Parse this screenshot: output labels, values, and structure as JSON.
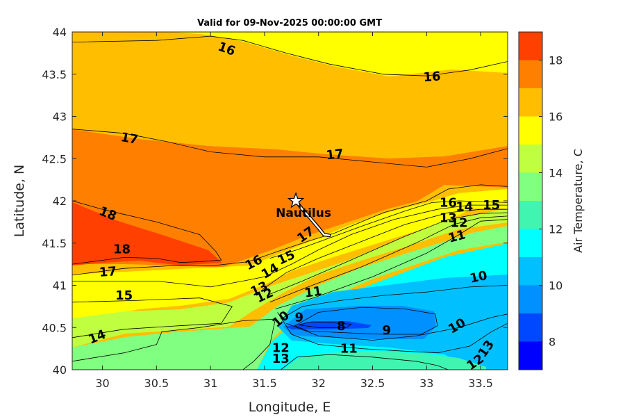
{
  "chart_data": {
    "type": "heatmap",
    "subtype": "filled-contour",
    "title": "Valid for 09-Nov-2025 00:00:00 GMT",
    "xlabel": "Longitude, E",
    "ylabel": "Latitude, N",
    "xlim": [
      29.72,
      33.75
    ],
    "ylim": [
      40,
      44
    ],
    "xticks": [
      30,
      30.5,
      31,
      31.5,
      32,
      32.5,
      33,
      33.5
    ],
    "xtick_labels": [
      "30",
      "30.5",
      "31",
      "31.5",
      "32",
      "32.5",
      "33",
      "33.5"
    ],
    "yticks": [
      40,
      40.5,
      41,
      41.5,
      42,
      42.5,
      43,
      43.5,
      44
    ],
    "ytick_labels": [
      "40",
      "40.5",
      "41",
      "41.5",
      "42",
      "42.5",
      "43",
      "43.5",
      "44"
    ],
    "grid": false,
    "colorbar": {
      "label": "Air Temperature, C",
      "range": [
        7,
        19
      ],
      "levels": [
        7,
        8,
        9,
        10,
        11,
        12,
        13,
        14,
        15,
        16,
        17,
        18,
        19
      ],
      "colors": [
        "#0000ff",
        "#0048ff",
        "#0090ff",
        "#00c0ff",
        "#00ffff",
        "#40f5b0",
        "#80ff80",
        "#bfff40",
        "#ffff00",
        "#ffbf00",
        "#ff8000",
        "#ff4000",
        "#ff0000"
      ],
      "tick_labels": [
        "8",
        "10",
        "12",
        "14",
        "16",
        "18"
      ],
      "ticks": [
        8,
        10,
        12,
        14,
        16,
        18
      ]
    },
    "contours": [
      {
        "level": 16,
        "points": [
          [
            29.72,
            43.88
          ],
          [
            30.5,
            43.9
          ],
          [
            31.0,
            43.95
          ],
          [
            31.3,
            43.9
          ],
          [
            31.7,
            43.75
          ],
          [
            32.1,
            43.62
          ],
          [
            32.6,
            43.5
          ],
          [
            33.0,
            43.48
          ],
          [
            33.4,
            43.55
          ],
          [
            33.75,
            43.65
          ]
        ]
      },
      {
        "level": 17,
        "points": [
          [
            29.72,
            42.85
          ],
          [
            30.2,
            42.8
          ],
          [
            30.6,
            42.7
          ],
          [
            31.0,
            42.58
          ],
          [
            31.5,
            42.52
          ],
          [
            32.0,
            42.52
          ],
          [
            32.5,
            42.46
          ],
          [
            33.0,
            42.4
          ],
          [
            33.4,
            42.5
          ],
          [
            33.75,
            42.62
          ]
        ]
      },
      {
        "level": 18,
        "points": [
          [
            29.72,
            42.0
          ],
          [
            30.0,
            41.9
          ],
          [
            30.5,
            41.75
          ],
          [
            30.9,
            41.6
          ],
          [
            31.05,
            41.4
          ],
          [
            31.1,
            41.3
          ],
          [
            30.9,
            41.28
          ],
          [
            30.72,
            41.27
          ],
          [
            30.5,
            41.32
          ],
          [
            30.2,
            41.33
          ],
          [
            29.72,
            41.25
          ]
        ]
      },
      {
        "level": 17,
        "points": [
          [
            29.72,
            41.12
          ],
          [
            30.2,
            41.2
          ],
          [
            30.6,
            41.23
          ],
          [
            31.0,
            41.23
          ],
          [
            31.35,
            41.28
          ],
          [
            31.62,
            41.4
          ],
          [
            31.9,
            41.52
          ],
          [
            32.15,
            41.62
          ],
          [
            32.6,
            41.86
          ],
          [
            33.0,
            42.0
          ],
          [
            33.2,
            42.14
          ],
          [
            33.5,
            42.19
          ],
          [
            33.75,
            42.17
          ]
        ]
      },
      {
        "level": 16,
        "points": [
          [
            31.55,
            41.32
          ],
          [
            31.8,
            41.42
          ],
          [
            32.1,
            41.56
          ],
          [
            32.4,
            41.7
          ],
          [
            32.8,
            41.88
          ],
          [
            33.05,
            41.98
          ],
          [
            33.3,
            42.0
          ],
          [
            33.75,
            41.98
          ]
        ]
      },
      {
        "level": 15,
        "points": [
          [
            29.72,
            41.05
          ],
          [
            30.5,
            41.05
          ],
          [
            31.0,
            40.98
          ],
          [
            31.3,
            41.05
          ],
          [
            31.5,
            41.1
          ],
          [
            31.75,
            41.25
          ],
          [
            32.0,
            41.42
          ],
          [
            32.3,
            41.6
          ],
          [
            32.7,
            41.78
          ],
          [
            33.1,
            41.9
          ],
          [
            33.4,
            41.95
          ],
          [
            33.75,
            41.95
          ]
        ]
      },
      {
        "level": 14,
        "points": [
          [
            31.48,
            40.95
          ],
          [
            31.7,
            41.15
          ],
          [
            32.0,
            41.32
          ],
          [
            32.4,
            41.52
          ],
          [
            32.8,
            41.72
          ],
          [
            33.2,
            41.86
          ],
          [
            33.5,
            41.9
          ],
          [
            33.75,
            41.9
          ]
        ]
      },
      {
        "level": 13,
        "points": [
          [
            31.52,
            40.88
          ],
          [
            31.85,
            41.05
          ],
          [
            32.3,
            41.3
          ],
          [
            32.8,
            41.58
          ],
          [
            33.2,
            41.78
          ],
          [
            33.5,
            41.85
          ],
          [
            33.75,
            41.86
          ]
        ]
      },
      {
        "level": 12,
        "points": [
          [
            31.55,
            40.8
          ],
          [
            31.9,
            40.98
          ],
          [
            32.4,
            41.22
          ],
          [
            32.9,
            41.5
          ],
          [
            33.25,
            41.72
          ],
          [
            33.5,
            41.8
          ],
          [
            33.75,
            41.82
          ]
        ]
      },
      {
        "level": 11,
        "points": [
          [
            31.6,
            40.72
          ],
          [
            31.95,
            40.85
          ],
          [
            32.5,
            41.1
          ],
          [
            33.0,
            41.38
          ],
          [
            33.3,
            41.6
          ],
          [
            33.5,
            41.76
          ],
          [
            33.75,
            41.78
          ]
        ]
      },
      {
        "level": 14,
        "points": [
          [
            29.72,
            40.8
          ],
          [
            30.3,
            40.82
          ],
          [
            30.9,
            40.85
          ],
          [
            31.2,
            40.75
          ],
          [
            31.1,
            40.55
          ],
          [
            30.7,
            40.52
          ],
          [
            30.2,
            40.48
          ],
          [
            29.72,
            40.38
          ]
        ]
      },
      {
        "level": 13,
        "points": [
          [
            29.72,
            40.1
          ],
          [
            30.2,
            40.2
          ],
          [
            30.5,
            40.3
          ],
          [
            30.55,
            40.45
          ],
          [
            30.9,
            40.5
          ],
          [
            31.3,
            40.58
          ],
          [
            31.6,
            40.6
          ],
          [
            31.55,
            40.3
          ],
          [
            31.4,
            40.1
          ],
          [
            31.3,
            40.0
          ]
        ]
      },
      {
        "level": 12,
        "points": [
          [
            31.65,
            40.0
          ],
          [
            31.8,
            40.15
          ],
          [
            32.1,
            40.18
          ],
          [
            32.5,
            40.15
          ],
          [
            32.9,
            40.1
          ],
          [
            33.1,
            40.05
          ],
          [
            33.2,
            40.0
          ]
        ]
      },
      {
        "level": 11,
        "points": [
          [
            31.62,
            40.68
          ],
          [
            31.75,
            40.42
          ],
          [
            32.0,
            40.3
          ],
          [
            32.4,
            40.25
          ],
          [
            32.8,
            40.22
          ],
          [
            33.1,
            40.2
          ],
          [
            33.4,
            40.28
          ],
          [
            33.6,
            40.45
          ],
          [
            33.75,
            40.55
          ]
        ]
      },
      {
        "level": 10,
        "points": [
          [
            31.65,
            40.6
          ],
          [
            31.85,
            40.75
          ],
          [
            32.2,
            40.82
          ],
          [
            32.6,
            40.88
          ],
          [
            33.0,
            40.92
          ],
          [
            33.4,
            40.98
          ],
          [
            33.75,
            41.0
          ]
        ]
      },
      {
        "level": 10,
        "points": [
          [
            31.7,
            40.55
          ],
          [
            32.0,
            40.4
          ],
          [
            32.5,
            40.35
          ],
          [
            32.9,
            40.4
          ],
          [
            33.3,
            40.5
          ],
          [
            33.6,
            40.62
          ],
          [
            33.75,
            40.66
          ]
        ]
      },
      {
        "level": 9,
        "points": [
          [
            31.78,
            40.52
          ],
          [
            32.0,
            40.68
          ],
          [
            32.4,
            40.74
          ],
          [
            32.8,
            40.72
          ],
          [
            33.08,
            40.66
          ],
          [
            33.1,
            40.52
          ],
          [
            32.95,
            40.42
          ],
          [
            32.6,
            40.42
          ],
          [
            32.2,
            40.44
          ],
          [
            31.9,
            40.46
          ],
          [
            31.78,
            40.52
          ]
        ]
      },
      {
        "level": 8,
        "points": [
          [
            31.82,
            40.53
          ],
          [
            31.9,
            40.56
          ],
          [
            32.1,
            40.56
          ],
          [
            32.3,
            40.54
          ],
          [
            32.26,
            40.5
          ],
          [
            32.0,
            40.5
          ],
          [
            31.82,
            40.53
          ]
        ]
      }
    ],
    "contour_labels": [
      {
        "text": "16",
        "x": 31.15,
        "y": 43.8,
        "angle": 20
      },
      {
        "text": "16",
        "x": 33.05,
        "y": 43.47,
        "angle": -4
      },
      {
        "text": "17",
        "x": 30.25,
        "y": 42.74,
        "angle": 10
      },
      {
        "text": "17",
        "x": 32.15,
        "y": 42.55,
        "angle": -6
      },
      {
        "text": "18",
        "x": 30.05,
        "y": 41.85,
        "angle": 22
      },
      {
        "text": "18",
        "x": 30.18,
        "y": 41.43,
        "angle": 0
      },
      {
        "text": "17",
        "x": 30.05,
        "y": 41.16,
        "angle": -4
      },
      {
        "text": "17",
        "x": 31.88,
        "y": 41.6,
        "angle": -35
      },
      {
        "text": "16",
        "x": 31.4,
        "y": 41.27,
        "angle": -28
      },
      {
        "text": "14",
        "x": 31.55,
        "y": 41.17,
        "angle": -30
      },
      {
        "text": "15",
        "x": 31.7,
        "y": 41.33,
        "angle": -25
      },
      {
        "text": "16",
        "x": 33.2,
        "y": 41.98,
        "angle": 0
      },
      {
        "text": "14",
        "x": 33.35,
        "y": 41.93,
        "angle": 0
      },
      {
        "text": "15",
        "x": 33.6,
        "y": 41.95,
        "angle": 0
      },
      {
        "text": "13",
        "x": 33.2,
        "y": 41.8,
        "angle": 0
      },
      {
        "text": "12",
        "x": 33.3,
        "y": 41.74,
        "angle": 0
      },
      {
        "text": "11",
        "x": 33.28,
        "y": 41.58,
        "angle": -15
      },
      {
        "text": "13",
        "x": 31.45,
        "y": 40.96,
        "angle": -25
      },
      {
        "text": "12",
        "x": 31.5,
        "y": 40.88,
        "angle": -25
      },
      {
        "text": "11",
        "x": 31.95,
        "y": 40.92,
        "angle": -8
      },
      {
        "text": "10",
        "x": 33.48,
        "y": 41.1,
        "angle": -12
      },
      {
        "text": "15",
        "x": 30.2,
        "y": 40.88,
        "angle": 0
      },
      {
        "text": "14",
        "x": 29.95,
        "y": 40.39,
        "angle": -22
      },
      {
        "text": "10",
        "x": 31.65,
        "y": 40.6,
        "angle": -40
      },
      {
        "text": "9",
        "x": 31.82,
        "y": 40.62,
        "angle": 0
      },
      {
        "text": "8",
        "x": 32.21,
        "y": 40.52,
        "angle": 0
      },
      {
        "text": "9",
        "x": 32.63,
        "y": 40.47,
        "angle": 0
      },
      {
        "text": "10",
        "x": 33.28,
        "y": 40.52,
        "angle": -30
      },
      {
        "text": "11",
        "x": 32.28,
        "y": 40.25,
        "angle": 0
      },
      {
        "text": "12",
        "x": 31.65,
        "y": 40.26,
        "angle": 0
      },
      {
        "text": "13",
        "x": 31.65,
        "y": 40.13,
        "angle": 0
      },
      {
        "text": "13",
        "x": 33.55,
        "y": 40.25,
        "angle": -55
      },
      {
        "text": "12",
        "x": 33.45,
        "y": 40.09,
        "angle": -35
      }
    ],
    "station": {
      "name": "Nautilus",
      "lon": 31.79,
      "lat": 42.0
    },
    "track": [
      [
        31.79,
        42.0
      ],
      [
        31.85,
        41.9
      ],
      [
        31.92,
        41.8
      ],
      [
        32.0,
        41.68
      ],
      [
        32.05,
        41.6
      ],
      [
        32.1,
        41.59
      ]
    ]
  }
}
